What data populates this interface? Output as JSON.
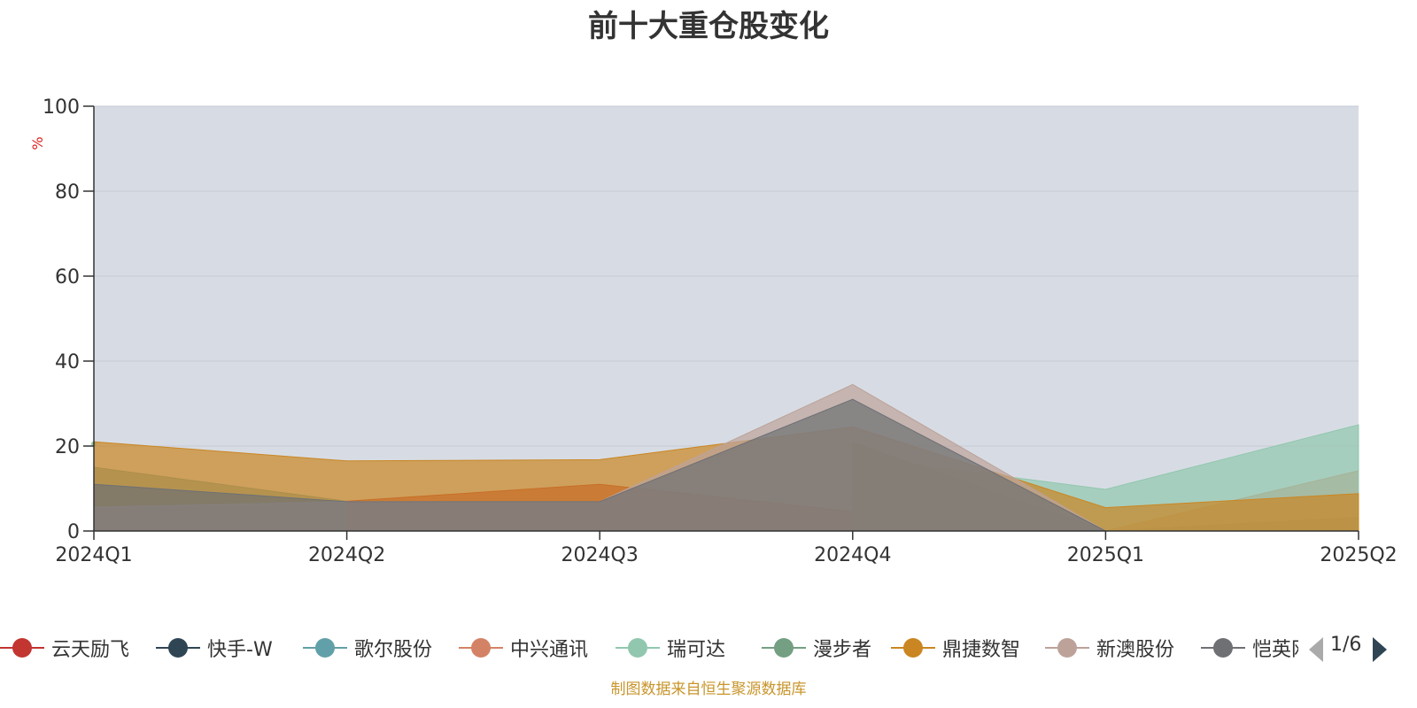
{
  "chart_data": {
    "type": "area",
    "stacked": false,
    "title": "前十大重仓股变化",
    "ylabel": "%",
    "xlabel": "",
    "ylim": [
      0,
      100
    ],
    "yticks": [
      0,
      20,
      40,
      60,
      80,
      100
    ],
    "grid": true,
    "legend_position": "bottom",
    "background": "#d7dce4",
    "categories": [
      "2024Q1",
      "2024Q2",
      "2024Q3",
      "2024Q4",
      "2025Q1",
      "2025Q2"
    ],
    "series": [
      {
        "name": "云天励飞",
        "color": "#c23531",
        "values": [
          null,
          7,
          11,
          4.5,
          0,
          null
        ]
      },
      {
        "name": "快手-W",
        "color": "#2f4554",
        "values": [
          null,
          null,
          null,
          null,
          0,
          3.2
        ]
      },
      {
        "name": "歌尔股份",
        "color": "#61a0a8",
        "values": [
          15,
          7,
          null,
          7.5,
          null,
          null
        ]
      },
      {
        "name": "中兴通讯",
        "color": "#d48265",
        "values": [
          null,
          null,
          null,
          14,
          0,
          14.2
        ]
      },
      {
        "name": "瑞可达",
        "color": "#91c7ae",
        "values": [
          20.5,
          null,
          null,
          17.5,
          9.8,
          25
        ]
      },
      {
        "name": "漫步者",
        "color": "#749f83",
        "values": [
          null,
          null,
          null,
          20.8,
          0,
          null
        ]
      },
      {
        "name": "鼎捷数智",
        "color": "#ca8622",
        "values": [
          21,
          16.5,
          16.8,
          24.5,
          5.5,
          8.8
        ]
      },
      {
        "name": "新澳股份",
        "color": "#bda29a",
        "values": [
          5.6,
          6.9,
          6.9,
          34.5,
          0,
          null
        ]
      },
      {
        "name": "恺英网络",
        "color": "#6e7074",
        "values": [
          11,
          6.9,
          6.9,
          31,
          0,
          null
        ]
      }
    ],
    "legend_page": "1/6"
  },
  "footer": {
    "note": "制图数据来自恒生聚源数据库"
  }
}
